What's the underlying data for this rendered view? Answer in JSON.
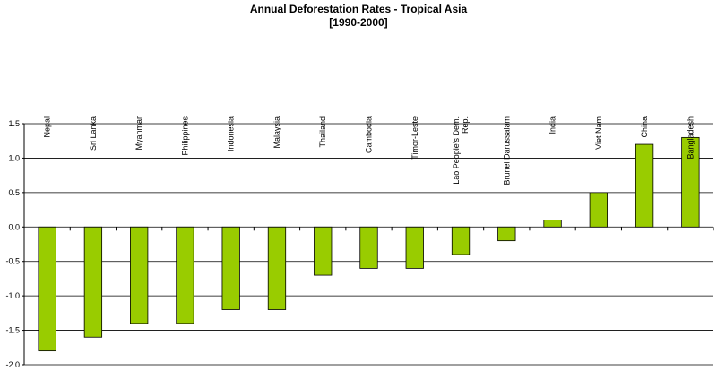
{
  "chart_data": {
    "type": "bar",
    "title": "Annual Deforestation Rates - Tropical Asia",
    "subtitle": "[1990-2000]",
    "categories": [
      [
        "Nepal"
      ],
      [
        "Sri Lanka"
      ],
      [
        "Myanmar"
      ],
      [
        "Philippines"
      ],
      [
        "Indonesia"
      ],
      [
        "Malaysia"
      ],
      [
        "Thailand"
      ],
      [
        "Cambodia"
      ],
      [
        "Timor-Leste"
      ],
      [
        "Lao People's Dem.",
        "Rep."
      ],
      [
        "Brunei Darussalam"
      ],
      [
        "India"
      ],
      [
        "Viet Nam"
      ],
      [
        "China"
      ],
      [
        "Bangladesh"
      ]
    ],
    "values": [
      -1.8,
      -1.6,
      -1.4,
      -1.4,
      -1.2,
      -1.2,
      -0.7,
      -0.6,
      -0.6,
      -0.4,
      -0.2,
      0.1,
      0.5,
      1.2,
      1.3
    ],
    "yticks": [
      "1.5",
      "1.0",
      "0.5",
      "0.0",
      "-0.5",
      "-1.0",
      "-1.5",
      "-2.0"
    ],
    "ylim": [
      -2.0,
      1.5
    ],
    "grid": true,
    "bar_color": "#99cc00",
    "bar_stroke": "#000000"
  }
}
